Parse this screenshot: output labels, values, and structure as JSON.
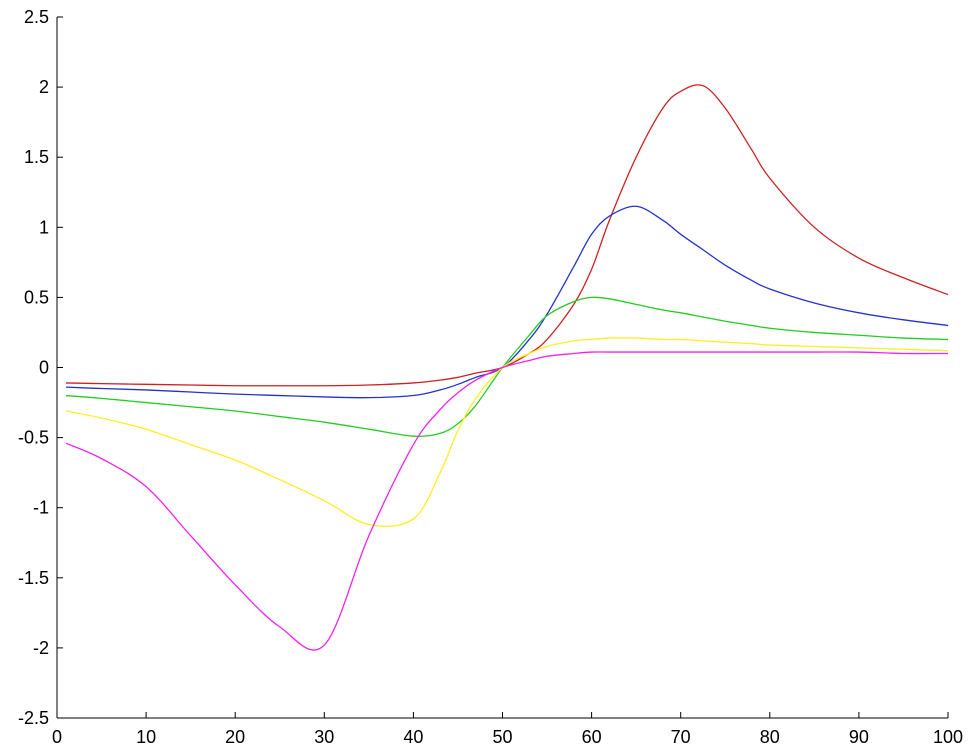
{
  "chart_data": {
    "type": "line",
    "title": "",
    "xlabel": "",
    "ylabel": "",
    "xlim": [
      0,
      100
    ],
    "ylim": [
      -2.5,
      2.5
    ],
    "grid": false,
    "x_ticks": [
      0,
      10,
      20,
      30,
      40,
      50,
      60,
      70,
      80,
      90,
      100
    ],
    "x_tick_labels": [
      "0",
      "10",
      "20",
      "30",
      "40",
      "50",
      "60",
      "70",
      "80",
      "90",
      "100"
    ],
    "y_ticks": [
      2.5,
      2,
      1.5,
      1,
      0.5,
      0,
      -0.5,
      -1,
      -1.5,
      -2,
      -2.5
    ],
    "y_tick_labels": [
      "2.5",
      "2",
      "1.5",
      "1",
      "0.5",
      "0",
      "-0.5",
      "-1",
      "-1.5",
      "-2",
      "-2.5"
    ],
    "x": [
      1,
      5,
      10,
      15,
      20,
      25,
      30,
      35,
      40,
      43,
      45,
      47,
      50,
      53,
      55,
      58,
      60,
      62,
      65,
      68,
      70,
      72.5,
      75,
      78,
      80,
      85,
      90,
      95,
      100
    ],
    "series": [
      {
        "color": "#cc2222",
        "values": [
          -0.11,
          -0.115,
          -0.12,
          -0.125,
          -0.13,
          -0.13,
          -0.13,
          -0.125,
          -0.11,
          -0.09,
          -0.07,
          -0.04,
          0.0,
          0.1,
          0.2,
          0.45,
          0.7,
          1.05,
          1.5,
          1.85,
          1.97,
          2.01,
          1.85,
          1.55,
          1.35,
          1.0,
          0.78,
          0.64,
          0.52
        ]
      },
      {
        "color": "#2233cc",
        "values": [
          -0.14,
          -0.15,
          -0.16,
          -0.175,
          -0.19,
          -0.2,
          -0.21,
          -0.215,
          -0.2,
          -0.16,
          -0.12,
          -0.07,
          0.0,
          0.2,
          0.38,
          0.72,
          0.95,
          1.08,
          1.15,
          1.05,
          0.95,
          0.84,
          0.73,
          0.62,
          0.56,
          0.46,
          0.39,
          0.34,
          0.3
        ]
      },
      {
        "color": "#22cc22",
        "values": [
          -0.2,
          -0.22,
          -0.25,
          -0.28,
          -0.31,
          -0.35,
          -0.39,
          -0.44,
          -0.49,
          -0.47,
          -0.4,
          -0.27,
          0.0,
          0.23,
          0.37,
          0.47,
          0.5,
          0.49,
          0.45,
          0.41,
          0.39,
          0.36,
          0.33,
          0.3,
          0.28,
          0.25,
          0.23,
          0.21,
          0.2
        ]
      },
      {
        "color": "#ffee22",
        "values": [
          -0.31,
          -0.36,
          -0.44,
          -0.55,
          -0.66,
          -0.8,
          -0.95,
          -1.12,
          -1.08,
          -0.75,
          -0.45,
          -0.22,
          0.0,
          0.1,
          0.15,
          0.19,
          0.2,
          0.21,
          0.21,
          0.2,
          0.2,
          0.19,
          0.18,
          0.17,
          0.16,
          0.15,
          0.14,
          0.13,
          0.12
        ]
      },
      {
        "color": "#ee22ee",
        "values": [
          -0.54,
          -0.65,
          -0.85,
          -1.2,
          -1.55,
          -1.85,
          -1.98,
          -1.2,
          -0.55,
          -0.3,
          -0.18,
          -0.09,
          0.0,
          0.05,
          0.08,
          0.1,
          0.11,
          0.11,
          0.11,
          0.11,
          0.11,
          0.11,
          0.11,
          0.11,
          0.11,
          0.11,
          0.11,
          0.1,
          0.1
        ]
      }
    ]
  }
}
